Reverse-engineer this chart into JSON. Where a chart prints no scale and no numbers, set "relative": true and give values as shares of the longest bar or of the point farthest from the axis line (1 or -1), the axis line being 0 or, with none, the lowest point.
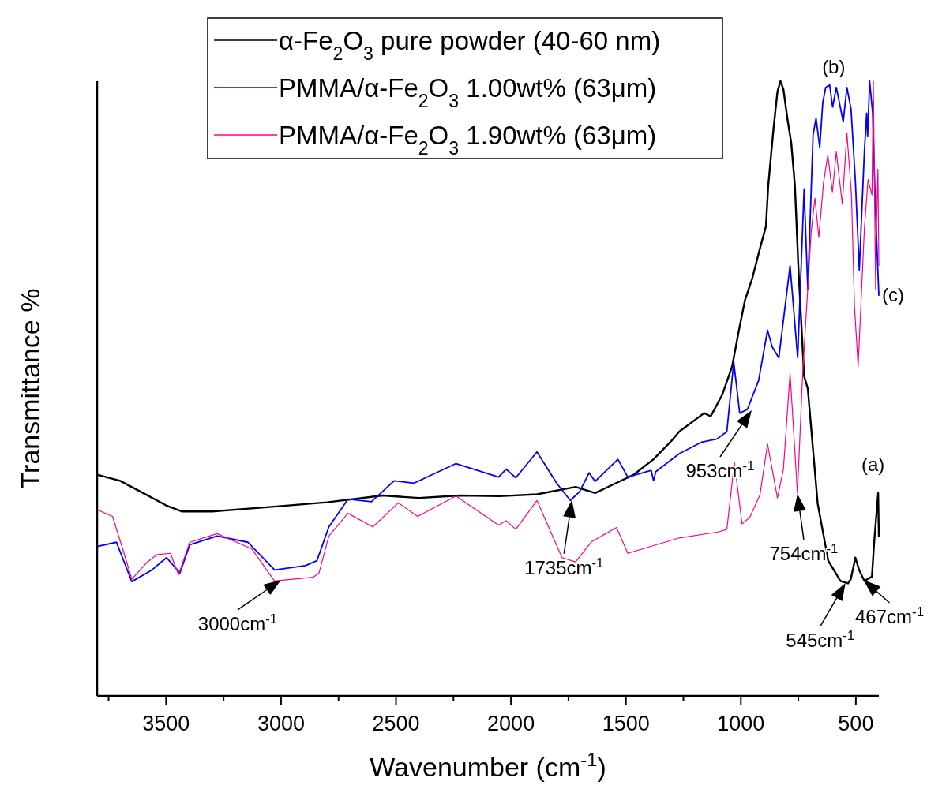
{
  "chart_data": {
    "type": "line",
    "relative": true,
    "xlabel": "Wavenumber (cm$^{-1}$)",
    "ylabel": "Transmittance %",
    "xlim": [
      3800,
      400
    ],
    "xticks": [
      {
        "value": 3750,
        "label": null
      },
      3500,
      {
        "value": 3250,
        "label": null
      },
      3000,
      {
        "value": 2750,
        "label": null
      },
      2500,
      {
        "value": 2250,
        "label": null
      },
      2000,
      {
        "value": 1750,
        "label": null
      },
      1500,
      {
        "value": 1250,
        "label": null
      },
      1000,
      {
        "value": 750,
        "label": null
      },
      500
    ],
    "legend": "top",
    "line_style": "solid",
    "marker": "none",
    "grid": false,
    "series": [
      {
        "name": "α-Fe$_{2}$O$_{3}$ pure powder (40-60 nm)",
        "color": "#000000",
        "x": [
          3800,
          3700,
          3600,
          3500,
          3430,
          3300,
          3062,
          2800,
          2558,
          2400,
          2222,
          2050,
          1887,
          1719,
          1634,
          1550,
          1466,
          1380,
          1302,
          1268,
          1160,
          1131,
          1081,
          1038,
          1011,
          982,
          950,
          917,
          891,
          881,
          858,
          841,
          828,
          815,
          798,
          781,
          765,
          749,
          725,
          709,
          666,
          620,
          567,
          534,
          522,
          502,
          486,
          463,
          430,
          421,
          403,
          400
        ],
        "values": [
          0.36,
          0.35,
          0.33,
          0.31,
          0.3,
          0.3,
          0.307,
          0.315,
          0.326,
          0.322,
          0.326,
          0.325,
          0.328,
          0.34,
          0.33,
          0.345,
          0.36,
          0.385,
          0.415,
          0.43,
          0.46,
          0.455,
          0.49,
          0.536,
          0.59,
          0.644,
          0.68,
          0.728,
          0.764,
          0.83,
          0.923,
          0.983,
          1.0,
          0.987,
          0.94,
          0.9,
          0.83,
          0.69,
          0.52,
          0.5,
          0.313,
          0.22,
          0.187,
          0.183,
          0.19,
          0.225,
          0.205,
          0.187,
          0.194,
          0.247,
          0.33,
          0.26
        ]
      },
      {
        "name": "PMMA/α-Fe$_{2}$O$_{3}$ 1.00wt% (63μm)",
        "color": "#0000ff",
        "x": [
          3800,
          3716,
          3649,
          3565,
          3498,
          3440,
          3397,
          3278,
          3144,
          3028,
          2894,
          2844,
          2792,
          2709,
          2607,
          2508,
          2423,
          2239,
          2054,
          2021,
          1979,
          1887,
          1801,
          1742,
          1702,
          1660,
          1634,
          1535,
          1492,
          1390,
          1380,
          1370,
          1268,
          1170,
          1104,
          1061,
          1031,
          1005,
          972,
          923,
          884,
          864,
          835,
          786,
          753,
          725,
          709,
          686,
          673,
          657,
          644,
          631,
          614,
          601,
          585,
          555,
          539,
          521,
          502,
          485,
          463,
          453,
          449,
          440,
          427,
          414,
          400
        ],
        "values": [
          0.243,
          0.25,
          0.186,
          0.204,
          0.225,
          0.2,
          0.246,
          0.26,
          0.25,
          0.205,
          0.212,
          0.22,
          0.275,
          0.32,
          0.316,
          0.35,
          0.346,
          0.378,
          0.356,
          0.369,
          0.355,
          0.397,
          0.346,
          0.318,
          0.332,
          0.363,
          0.349,
          0.385,
          0.356,
          0.367,
          0.35,
          0.365,
          0.394,
          0.413,
          0.418,
          0.43,
          0.543,
          0.46,
          0.466,
          0.513,
          0.595,
          0.568,
          0.55,
          0.7,
          0.55,
          0.825,
          0.662,
          0.913,
          0.94,
          0.892,
          0.965,
          0.99,
          0.994,
          0.958,
          0.99,
          0.934,
          0.99,
          0.955,
          0.837,
          0.693,
          0.885,
          0.948,
          0.91,
          1.0,
          0.948,
          0.783,
          0.652
        ]
      },
      {
        "name": "PMMA/α-Fe$_{2}$O$_{3}$ 1.90wt% (63μm)",
        "color": "#ff0080",
        "x": [
          3800,
          3733,
          3683,
          3649,
          3581,
          3539,
          3481,
          3446,
          3397,
          3278,
          3127,
          3028,
          2861,
          2835,
          2792,
          2709,
          2601,
          2490,
          2406,
          2239,
          2054,
          2021,
          1979,
          1887,
          1778,
          1719,
          1649,
          1541,
          1492,
          1268,
          1095,
          1061,
          1028,
          995,
          962,
          917,
          884,
          841,
          815,
          786,
          754,
          731,
          694,
          678,
          661,
          641,
          622,
          602,
          585,
          559,
          539,
          519,
          506,
          490,
          463,
          447,
          430,
          424,
          414,
          412,
          404,
          400
        ],
        "values": [
          0.303,
          0.292,
          0.232,
          0.19,
          0.218,
          0.23,
          0.232,
          0.197,
          0.25,
          0.264,
          0.239,
          0.187,
          0.193,
          0.2,
          0.26,
          0.297,
          0.275,
          0.314,
          0.292,
          0.325,
          0.278,
          0.285,
          0.271,
          0.318,
          0.225,
          0.218,
          0.251,
          0.274,
          0.232,
          0.257,
          0.267,
          0.271,
          0.38,
          0.28,
          0.29,
          0.327,
          0.41,
          0.322,
          0.369,
          0.525,
          0.33,
          0.527,
          0.756,
          0.81,
          0.746,
          0.834,
          0.88,
          0.82,
          0.885,
          0.8,
          0.916,
          0.815,
          0.634,
          0.536,
          0.76,
          0.84,
          0.815,
          1.0,
          0.662,
          0.74,
          0.857,
          0.7
        ]
      }
    ],
    "annotations": [
      {
        "text": "3000cm$^{-1}$",
        "x": 3000,
        "y": 0.19
      },
      {
        "text": "1735cm$^{-1}$",
        "x": 1735,
        "y": 0.32
      },
      {
        "text": "953cm$^{-1}$",
        "x": 953,
        "y": 0.466
      },
      {
        "text": "754cm$^{-1}$",
        "x": 754,
        "y": 0.33
      },
      {
        "text": "545cm$^{-1}$",
        "x": 545,
        "y": 0.185
      },
      {
        "text": "467cm$^{-1}$",
        "x": 467,
        "y": 0.19
      },
      {
        "text": "(a)",
        "x": 400,
        "y": 0.33
      },
      {
        "text": "(b)",
        "x": 585,
        "y": 0.99
      },
      {
        "text": "(c)",
        "x": 400,
        "y": 0.652
      }
    ]
  }
}
